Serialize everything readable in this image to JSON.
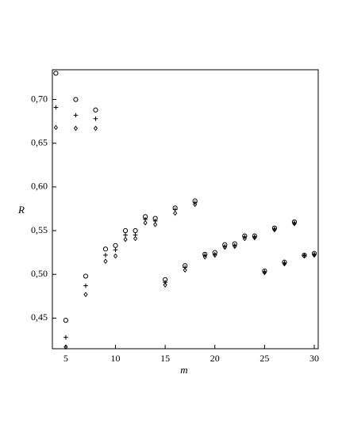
{
  "chart_data": {
    "type": "scatter",
    "x_label": "m",
    "y_label": "R",
    "x": [
      4,
      5,
      6,
      7,
      8,
      9,
      10,
      11,
      12,
      13,
      14,
      15,
      16,
      17,
      18,
      19,
      20,
      21,
      22,
      23,
      24,
      25,
      26,
      27,
      28,
      29,
      30
    ],
    "series": [
      {
        "marker": "circle",
        "color": "#000000",
        "values": [
          0.73,
          0.4475,
          0.7,
          0.498,
          0.688,
          0.529,
          0.533,
          0.55,
          0.55,
          0.566,
          0.564,
          0.494,
          0.576,
          0.51,
          0.584,
          0.523,
          0.525,
          0.534,
          0.535,
          0.544,
          0.544,
          0.504,
          0.553,
          0.514,
          0.56,
          0.522,
          0.524
        ]
      },
      {
        "marker": "plus",
        "color": "#000000",
        "values": [
          0.691,
          0.428,
          0.682,
          0.487,
          0.678,
          0.522,
          0.528,
          0.545,
          0.545,
          0.563,
          0.561,
          0.491,
          0.574,
          0.508,
          0.582,
          0.522,
          0.523,
          0.532,
          0.533,
          0.543,
          0.543,
          0.503,
          0.552,
          0.513,
          0.559,
          0.5215,
          0.523
        ]
      },
      {
        "marker": "diamond",
        "color": "#000000",
        "values": [
          0.668,
          0.417,
          0.667,
          0.477,
          0.667,
          0.515,
          0.521,
          0.54,
          0.541,
          0.559,
          0.557,
          0.488,
          0.57,
          0.505,
          0.58,
          0.52,
          0.522,
          0.531,
          0.532,
          0.541,
          0.542,
          0.502,
          0.551,
          0.512,
          0.558,
          0.521,
          0.522
        ]
      }
    ],
    "xlim": [
      3.65,
      30.4
    ],
    "ylim": [
      0.415,
      0.734
    ],
    "xticks": [
      5,
      10,
      15,
      20,
      25,
      30
    ],
    "yticks": [
      {
        "value": 0.45,
        "label": "0,45"
      },
      {
        "value": 0.5,
        "label": "0,50"
      },
      {
        "value": 0.55,
        "label": "0,55"
      },
      {
        "value": 0.6,
        "label": "0,60"
      },
      {
        "value": 0.65,
        "label": "0,65"
      },
      {
        "value": 0.7,
        "label": "0,70"
      }
    ]
  }
}
